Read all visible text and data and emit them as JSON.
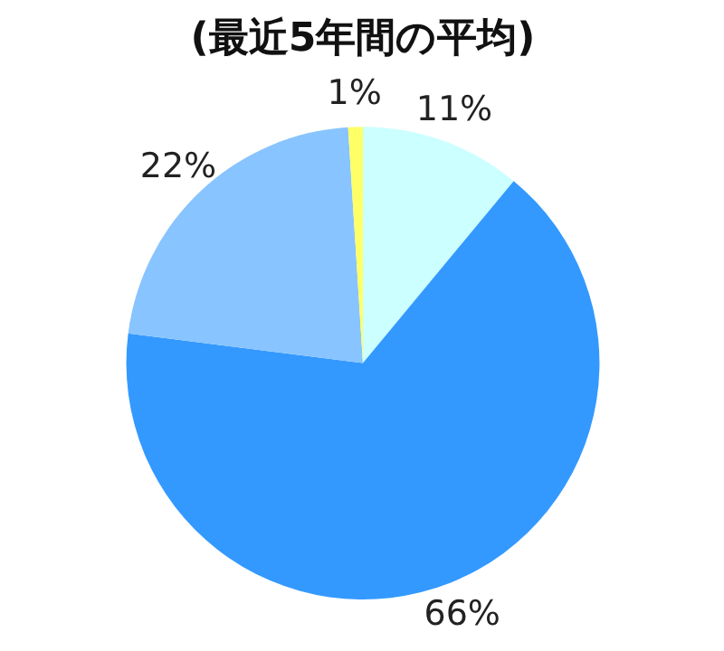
{
  "chart_data": {
    "type": "pie",
    "title": "(最近5年間の平均)",
    "categories": [
      null,
      null,
      null,
      null
    ],
    "values": [
      11,
      66,
      22,
      1
    ],
    "colors": [
      "#ccffff",
      "#3399ff",
      "#88c4ff",
      "#ffff66"
    ],
    "value_labels": [
      "11%",
      "66%",
      "22%",
      "1%"
    ]
  }
}
